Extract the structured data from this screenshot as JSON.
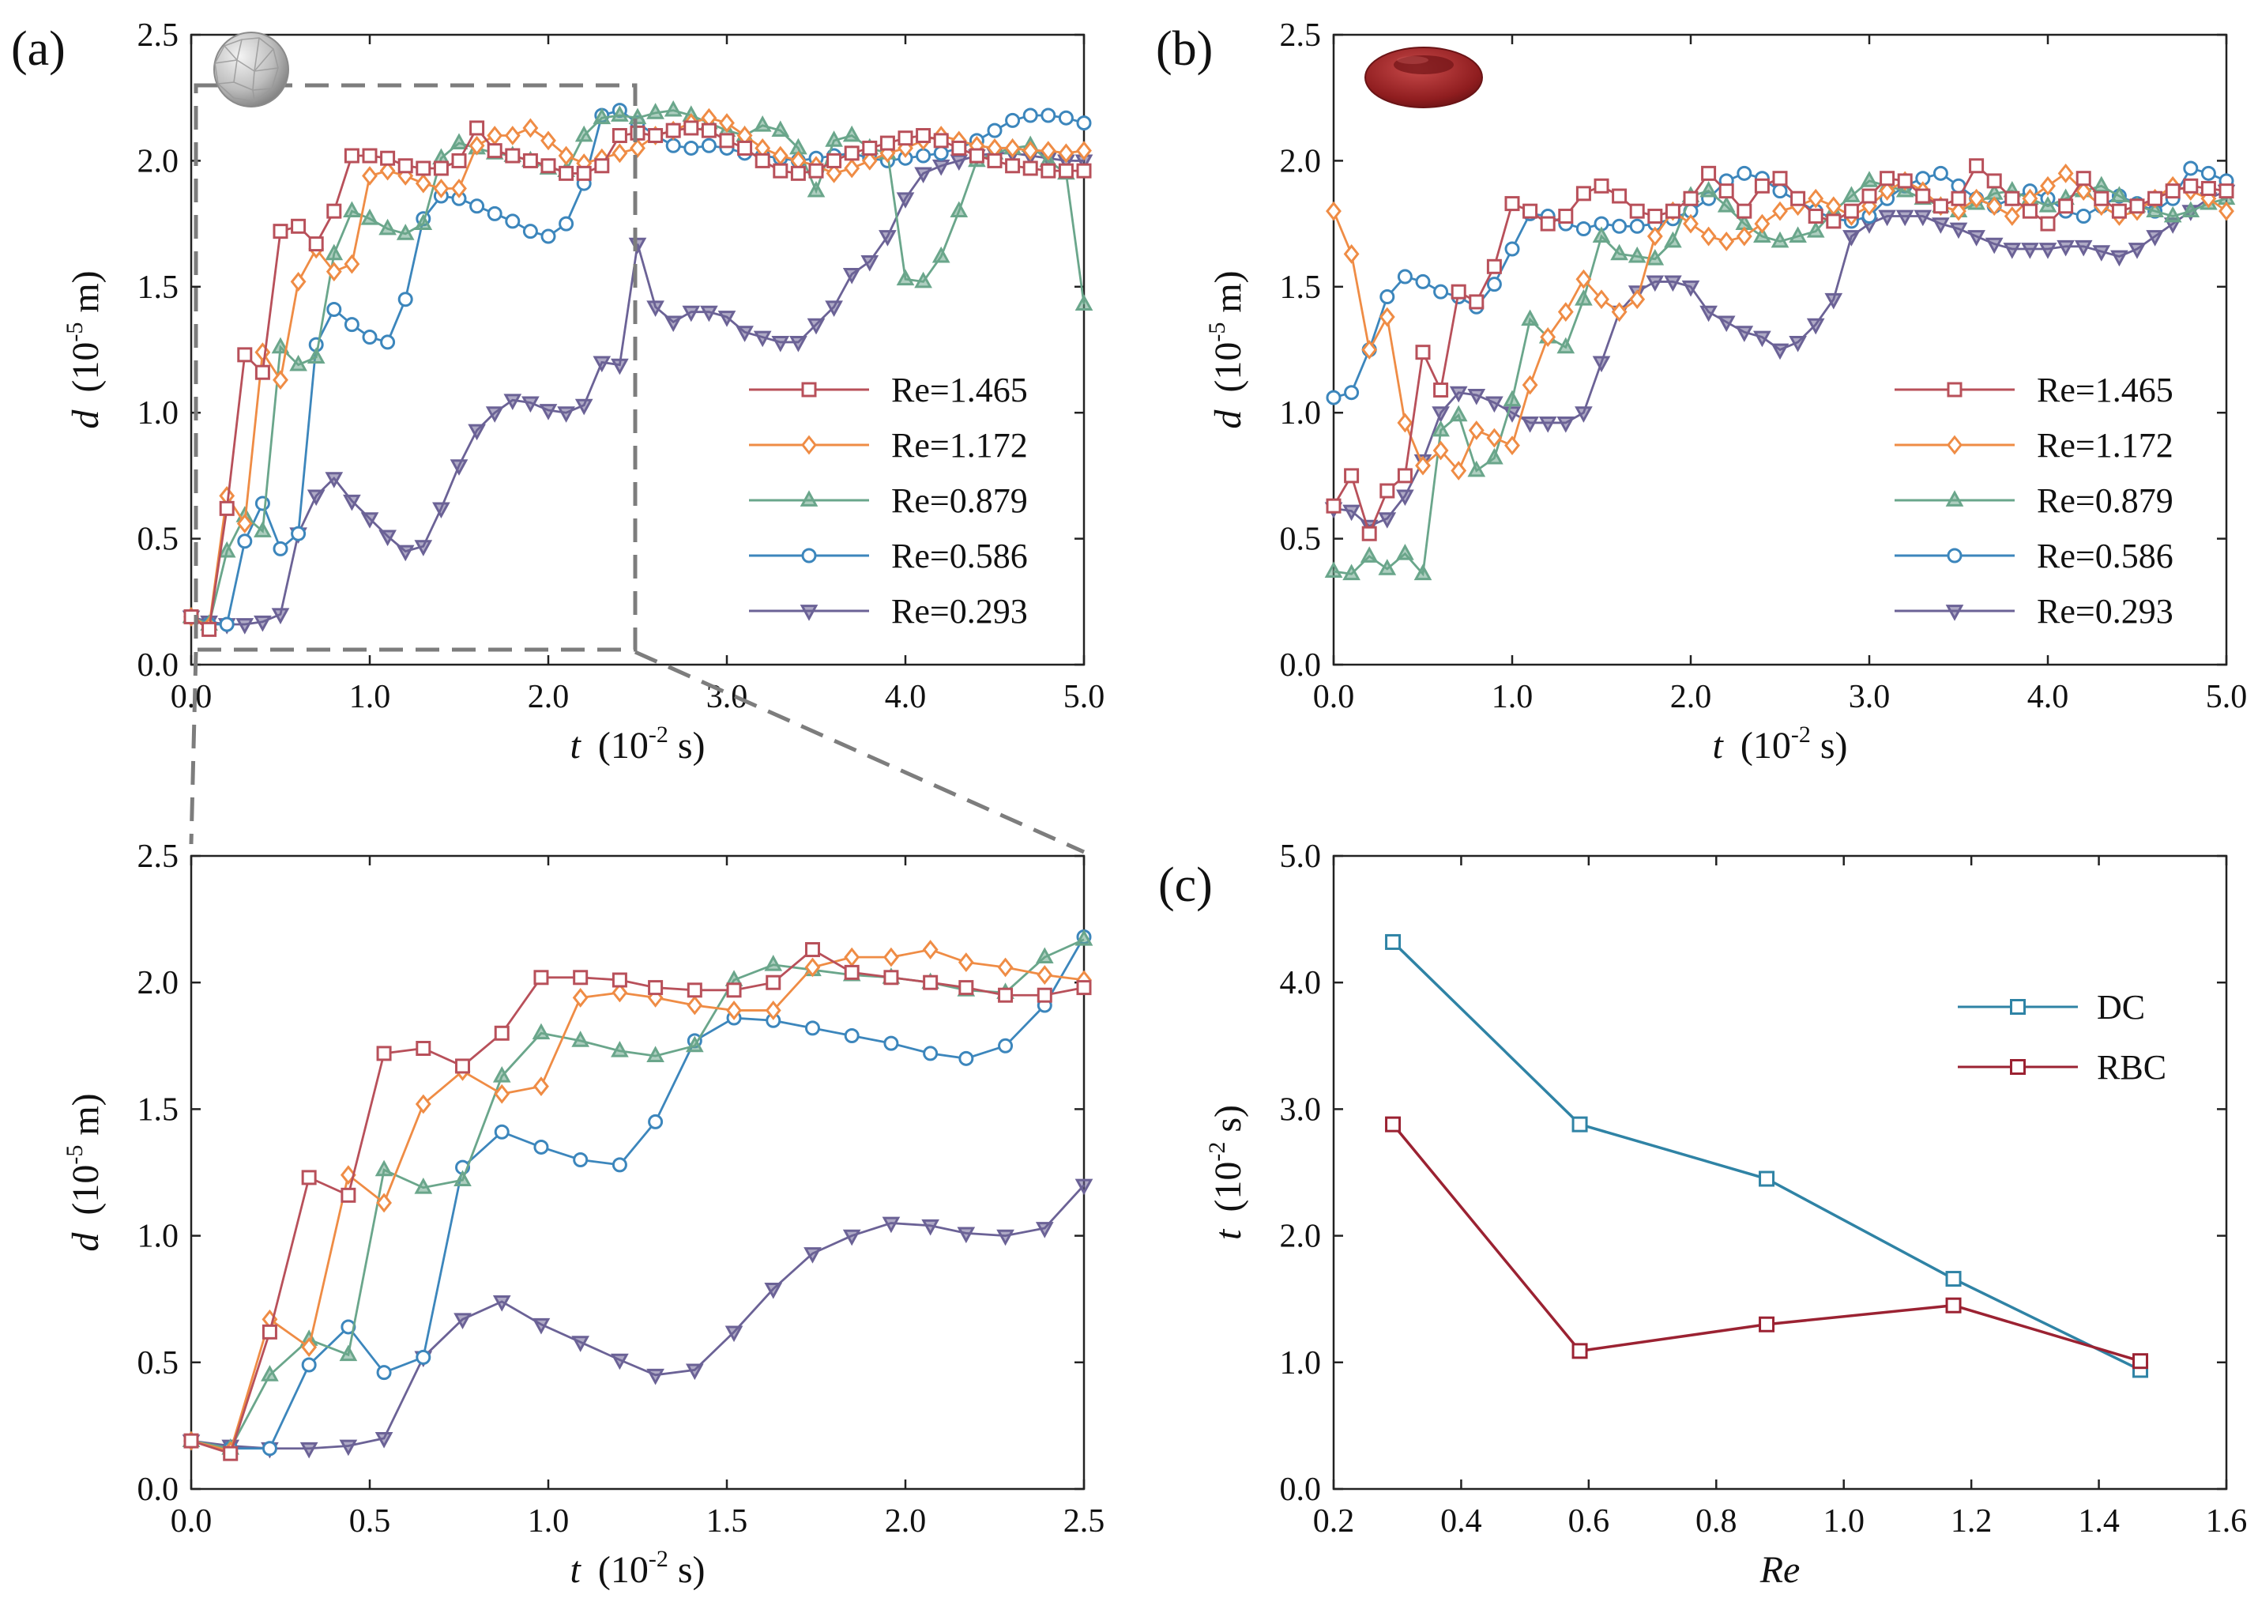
{
  "figure": {
    "panel_labels": [
      "(a)",
      "(b)",
      "(c)"
    ],
    "line_colors": {
      "Re=1.465": "#b8505a",
      "Re=1.172": "#ef8c45",
      "Re=0.879": "#6aa68b",
      "Re=0.586": "#3c86bc",
      "Re=0.293": "#6b6296",
      "DC": "#2f83a5",
      "RBC": "#9b2232"
    },
    "inset_shapes": [
      "sphere-icon",
      "red-blood-cell-icon"
    ],
    "markers": {
      "Re=1.465": "square",
      "Re=1.172": "diamond",
      "Re=0.879": "triangle-up",
      "Re=0.586": "circle",
      "Re=0.293": "triangle-down"
    }
  },
  "chart_data": [
    {
      "id": "a-top",
      "type": "line",
      "panel_label": "(a)",
      "xlabel_var": "t",
      "xlabel_unit": "(10",
      "xlabel_exp": "-2",
      "xlabel_end": " s)",
      "ylabel_var": "d",
      "ylabel_unit": "(10",
      "ylabel_exp": "-5",
      "ylabel_end": " m)",
      "xlim": [
        0,
        5
      ],
      "ylim": [
        0,
        2.5
      ],
      "xticks": [
        "0.0",
        "1.0",
        "2.0",
        "3.0",
        "4.0",
        "5.0"
      ],
      "yticks": [
        "0.0",
        "0.5",
        "1.0",
        "1.5",
        "2.0",
        "2.5"
      ],
      "legend": [
        "Re=1.465",
        "Re=1.172",
        "Re=0.879",
        "Re=0.586",
        "Re=0.293"
      ],
      "x": [
        0,
        0.1,
        0.2,
        0.3,
        0.4,
        0.5,
        0.6,
        0.7,
        0.8,
        0.9,
        1.0,
        1.1,
        1.2,
        1.3,
        1.4,
        1.5,
        1.6,
        1.7,
        1.8,
        1.9,
        2.0,
        2.1,
        2.2,
        2.3,
        2.4,
        2.5,
        2.6,
        2.7,
        2.8,
        2.9,
        3.0,
        3.1,
        3.2,
        3.3,
        3.4,
        3.5,
        3.6,
        3.7,
        3.8,
        3.9,
        4.0,
        4.1,
        4.2,
        4.3,
        4.4,
        4.5,
        4.6,
        4.7,
        4.8,
        4.9,
        5.0
      ],
      "series": [
        {
          "name": "Re=1.465",
          "values": [
            0.19,
            0.14,
            0.62,
            1.23,
            1.16,
            1.72,
            1.74,
            1.67,
            1.8,
            2.02,
            2.02,
            2.01,
            1.98,
            1.97,
            1.97,
            2.0,
            2.13,
            2.04,
            2.02,
            2.0,
            1.98,
            1.95,
            1.95,
            1.98,
            2.1,
            2.11,
            2.1,
            2.12,
            2.13,
            2.12,
            2.08,
            2.05,
            2.0,
            1.96,
            1.95,
            1.96,
            2.0,
            2.03,
            2.05,
            2.07,
            2.09,
            2.1,
            2.08,
            2.05,
            2.02,
            2.0,
            1.98,
            1.97,
            1.96,
            1.96,
            1.96
          ]
        },
        {
          "name": "Re=1.172",
          "values": [
            0.19,
            0.15,
            0.67,
            0.56,
            1.24,
            1.13,
            1.52,
            1.65,
            1.56,
            1.59,
            1.94,
            1.96,
            1.94,
            1.91,
            1.89,
            1.89,
            2.06,
            2.1,
            2.1,
            2.13,
            2.08,
            2.02,
            1.99,
            2.01,
            2.03,
            2.05,
            2.1,
            2.12,
            2.15,
            2.17,
            2.15,
            2.1,
            2.05,
            2.02,
            2.0,
            1.98,
            1.95,
            1.97,
            2.0,
            2.03,
            2.05,
            2.08,
            2.1,
            2.08,
            2.06,
            2.05,
            2.05,
            2.04,
            2.04,
            2.03,
            2.04
          ]
        },
        {
          "name": "Re=0.879",
          "values": [
            0.19,
            0.16,
            0.45,
            0.59,
            0.53,
            1.26,
            1.19,
            1.22,
            1.63,
            1.8,
            1.77,
            1.73,
            1.71,
            1.75,
            2.01,
            2.07,
            2.05,
            2.03,
            2.02,
            2.0,
            1.97,
            1.96,
            2.1,
            2.17,
            2.18,
            2.17,
            2.19,
            2.2,
            2.18,
            2.15,
            2.12,
            2.1,
            2.14,
            2.12,
            2.05,
            1.88,
            2.08,
            2.1,
            2.05,
            2.03,
            1.53,
            1.52,
            1.62,
            1.8,
            2.0,
            2.03,
            2.05,
            2.06,
            2.0,
            1.95,
            1.43
          ]
        },
        {
          "name": "Re=0.586",
          "values": [
            0.19,
            0.16,
            0.16,
            0.49,
            0.64,
            0.46,
            0.52,
            1.27,
            1.41,
            1.35,
            1.3,
            1.28,
            1.45,
            1.77,
            1.86,
            1.85,
            1.82,
            1.79,
            1.76,
            1.72,
            1.7,
            1.75,
            1.91,
            2.18,
            2.2,
            2.15,
            2.1,
            2.06,
            2.05,
            2.06,
            2.05,
            2.03,
            2.02,
            2.01,
            2.0,
            2.01,
            2.02,
            2.03,
            2.01,
            2.0,
            2.01,
            2.02,
            2.03,
            2.05,
            2.08,
            2.12,
            2.16,
            2.18,
            2.18,
            2.17,
            2.15
          ]
        },
        {
          "name": "Re=0.293",
          "values": [
            0.19,
            0.17,
            0.16,
            0.16,
            0.17,
            0.2,
            0.52,
            0.67,
            0.74,
            0.65,
            0.58,
            0.51,
            0.45,
            0.47,
            0.62,
            0.79,
            0.93,
            1.0,
            1.05,
            1.04,
            1.01,
            1.0,
            1.03,
            1.2,
            1.19,
            1.67,
            1.42,
            1.36,
            1.4,
            1.4,
            1.38,
            1.32,
            1.3,
            1.28,
            1.28,
            1.35,
            1.42,
            1.55,
            1.6,
            1.7,
            1.85,
            1.95,
            1.98,
            2.0,
            2.02,
            2.03,
            2.03,
            2.02,
            2.01,
            2.0,
            2.0
          ]
        }
      ]
    },
    {
      "id": "a-zoom",
      "type": "line",
      "xlabel_var": "t",
      "xlabel_unit": "(10",
      "xlabel_exp": "-2",
      "xlabel_end": " s)",
      "ylabel_var": "d",
      "ylabel_unit": "(10",
      "ylabel_exp": "-5",
      "ylabel_end": " m)",
      "xlim": [
        0,
        2.5
      ],
      "ylim": [
        0,
        2.5
      ],
      "xticks": [
        "0.0",
        "0.5",
        "1.0",
        "1.5",
        "2.0",
        "2.5"
      ],
      "yticks": [
        "0.0",
        "0.5",
        "1.0",
        "1.5",
        "2.0",
        "2.5"
      ],
      "x": [
        0,
        0.11,
        0.22,
        0.33,
        0.44,
        0.54,
        0.65,
        0.76,
        0.87,
        0.98,
        1.09,
        1.2,
        1.3,
        1.41,
        1.52,
        1.63,
        1.74,
        1.85,
        1.96,
        2.07,
        2.17,
        2.28,
        2.39,
        2.5
      ],
      "series": [
        {
          "name": "Re=1.465",
          "values": [
            0.19,
            0.14,
            0.62,
            1.23,
            1.16,
            1.72,
            1.74,
            1.67,
            1.8,
            2.02,
            2.02,
            2.01,
            1.98,
            1.97,
            1.97,
            2.0,
            2.13,
            2.04,
            2.02,
            2.0,
            1.98,
            1.95,
            1.95,
            1.98
          ]
        },
        {
          "name": "Re=1.172",
          "values": [
            0.19,
            0.15,
            0.67,
            0.56,
            1.24,
            1.13,
            1.52,
            1.65,
            1.56,
            1.59,
            1.94,
            1.96,
            1.94,
            1.91,
            1.89,
            1.89,
            2.06,
            2.1,
            2.1,
            2.13,
            2.08,
            2.06,
            2.03,
            2.01
          ]
        },
        {
          "name": "Re=0.879",
          "values": [
            0.19,
            0.16,
            0.45,
            0.59,
            0.53,
            1.26,
            1.19,
            1.22,
            1.63,
            1.8,
            1.77,
            1.73,
            1.71,
            1.75,
            2.01,
            2.07,
            2.05,
            2.03,
            2.02,
            2.0,
            1.97,
            1.96,
            2.1,
            2.17
          ]
        },
        {
          "name": "Re=0.586",
          "values": [
            0.19,
            0.16,
            0.16,
            0.49,
            0.64,
            0.46,
            0.52,
            1.27,
            1.41,
            1.35,
            1.3,
            1.28,
            1.45,
            1.77,
            1.86,
            1.85,
            1.82,
            1.79,
            1.76,
            1.72,
            1.7,
            1.75,
            1.91,
            2.18
          ]
        },
        {
          "name": "Re=0.293",
          "values": [
            0.19,
            0.17,
            0.16,
            0.16,
            0.17,
            0.2,
            0.52,
            0.67,
            0.74,
            0.65,
            0.58,
            0.51,
            0.45,
            0.47,
            0.62,
            0.79,
            0.93,
            1.0,
            1.05,
            1.04,
            1.01,
            1.0,
            1.03,
            1.2
          ]
        }
      ]
    },
    {
      "id": "b",
      "type": "line",
      "panel_label": "(b)",
      "xlabel_var": "t",
      "xlabel_unit": "(10",
      "xlabel_exp": "-2",
      "xlabel_end": " s)",
      "ylabel_var": "d",
      "ylabel_unit": "(10",
      "ylabel_exp": "-5",
      "ylabel_end": " m)",
      "xlim": [
        0,
        5
      ],
      "ylim": [
        0,
        2.5
      ],
      "xticks": [
        "0.0",
        "1.0",
        "2.0",
        "3.0",
        "4.0",
        "5.0"
      ],
      "yticks": [
        "0.0",
        "0.5",
        "1.0",
        "1.5",
        "2.0",
        "2.5"
      ],
      "legend": [
        "Re=1.465",
        "Re=1.172",
        "Re=0.879",
        "Re=0.586",
        "Re=0.293"
      ],
      "x": [
        0,
        0.1,
        0.2,
        0.3,
        0.4,
        0.5,
        0.6,
        0.7,
        0.8,
        0.9,
        1.0,
        1.1,
        1.2,
        1.3,
        1.4,
        1.5,
        1.6,
        1.7,
        1.8,
        1.9,
        2.0,
        2.1,
        2.2,
        2.3,
        2.4,
        2.5,
        2.6,
        2.7,
        2.8,
        2.9,
        3.0,
        3.1,
        3.2,
        3.3,
        3.4,
        3.5,
        3.6,
        3.7,
        3.8,
        3.9,
        4.0,
        4.1,
        4.2,
        4.3,
        4.4,
        4.5,
        4.6,
        4.7,
        4.8,
        4.9,
        5.0
      ],
      "series": [
        {
          "name": "Re=1.465",
          "values": [
            0.63,
            0.75,
            0.52,
            0.69,
            0.75,
            1.24,
            1.09,
            1.48,
            1.44,
            1.58,
            1.83,
            1.8,
            1.75,
            1.78,
            1.87,
            1.9,
            1.86,
            1.8,
            1.78,
            1.8,
            1.85,
            1.95,
            1.88,
            1.8,
            1.9,
            1.93,
            1.85,
            1.78,
            1.76,
            1.8,
            1.86,
            1.93,
            1.92,
            1.86,
            1.82,
            1.85,
            1.98,
            1.92,
            1.85,
            1.8,
            1.75,
            1.82,
            1.93,
            1.85,
            1.8,
            1.82,
            1.85,
            1.88,
            1.9,
            1.89,
            1.88
          ]
        },
        {
          "name": "Re=1.172",
          "values": [
            1.8,
            1.63,
            1.25,
            1.38,
            0.96,
            0.79,
            0.85,
            0.77,
            0.93,
            0.9,
            0.87,
            1.11,
            1.3,
            1.4,
            1.53,
            1.45,
            1.4,
            1.45,
            1.7,
            1.8,
            1.75,
            1.7,
            1.68,
            1.7,
            1.75,
            1.8,
            1.82,
            1.85,
            1.82,
            1.78,
            1.82,
            1.88,
            1.92,
            1.88,
            1.82,
            1.8,
            1.85,
            1.82,
            1.78,
            1.85,
            1.9,
            1.95,
            1.88,
            1.82,
            1.78,
            1.8,
            1.85,
            1.9,
            1.88,
            1.85,
            1.8
          ]
        },
        {
          "name": "Re=0.879",
          "values": [
            0.37,
            0.36,
            0.43,
            0.38,
            0.44,
            0.36,
            0.93,
            0.99,
            0.77,
            0.82,
            1.05,
            1.37,
            1.3,
            1.26,
            1.45,
            1.7,
            1.63,
            1.62,
            1.61,
            1.68,
            1.86,
            1.88,
            1.82,
            1.75,
            1.7,
            1.68,
            1.7,
            1.72,
            1.8,
            1.86,
            1.92,
            1.9,
            1.88,
            1.85,
            1.82,
            1.8,
            1.83,
            1.87,
            1.88,
            1.85,
            1.82,
            1.85,
            1.88,
            1.9,
            1.86,
            1.82,
            1.8,
            1.78,
            1.8,
            1.83,
            1.85
          ]
        },
        {
          "name": "Re=0.586",
          "values": [
            1.06,
            1.08,
            1.25,
            1.46,
            1.54,
            1.52,
            1.48,
            1.46,
            1.42,
            1.51,
            1.65,
            1.79,
            1.78,
            1.75,
            1.73,
            1.75,
            1.74,
            1.74,
            1.75,
            1.77,
            1.8,
            1.85,
            1.92,
            1.95,
            1.93,
            1.88,
            1.84,
            1.8,
            1.77,
            1.76,
            1.78,
            1.85,
            1.9,
            1.93,
            1.95,
            1.9,
            1.85,
            1.82,
            1.85,
            1.88,
            1.85,
            1.8,
            1.78,
            1.82,
            1.86,
            1.83,
            1.8,
            1.85,
            1.97,
            1.95,
            1.92
          ]
        },
        {
          "name": "Re=0.293",
          "values": [
            0.62,
            0.61,
            0.55,
            0.58,
            0.67,
            0.81,
            1.0,
            1.08,
            1.07,
            1.04,
            1.0,
            0.96,
            0.96,
            0.96,
            1.0,
            1.2,
            1.4,
            1.48,
            1.52,
            1.52,
            1.5,
            1.4,
            1.36,
            1.32,
            1.3,
            1.25,
            1.28,
            1.35,
            1.45,
            1.7,
            1.75,
            1.78,
            1.78,
            1.78,
            1.75,
            1.73,
            1.7,
            1.67,
            1.65,
            1.65,
            1.65,
            1.66,
            1.66,
            1.64,
            1.62,
            1.65,
            1.7,
            1.75,
            1.8,
            1.85,
            1.88
          ]
        }
      ]
    },
    {
      "id": "c",
      "type": "line",
      "panel_label": "(c)",
      "xlabel_var": "Re",
      "ylabel_var": "t",
      "ylabel_unit": "(10",
      "ylabel_exp": "-2",
      "ylabel_end": " s)",
      "xlim": [
        0.2,
        1.6
      ],
      "ylim": [
        0,
        5
      ],
      "xticks": [
        "0.2",
        "0.4",
        "0.6",
        "0.8",
        "1.0",
        "1.2",
        "1.4",
        "1.6"
      ],
      "yticks": [
        "0.0",
        "1.0",
        "2.0",
        "3.0",
        "4.0",
        "5.0"
      ],
      "legend": [
        "DC",
        "RBC"
      ],
      "x": [
        0.293,
        0.586,
        0.879,
        1.172,
        1.465
      ],
      "series": [
        {
          "name": "DC",
          "values": [
            4.32,
            2.88,
            2.45,
            1.66,
            0.94
          ]
        },
        {
          "name": "RBC",
          "values": [
            2.88,
            1.09,
            1.3,
            1.45,
            1.01
          ]
        }
      ]
    }
  ]
}
